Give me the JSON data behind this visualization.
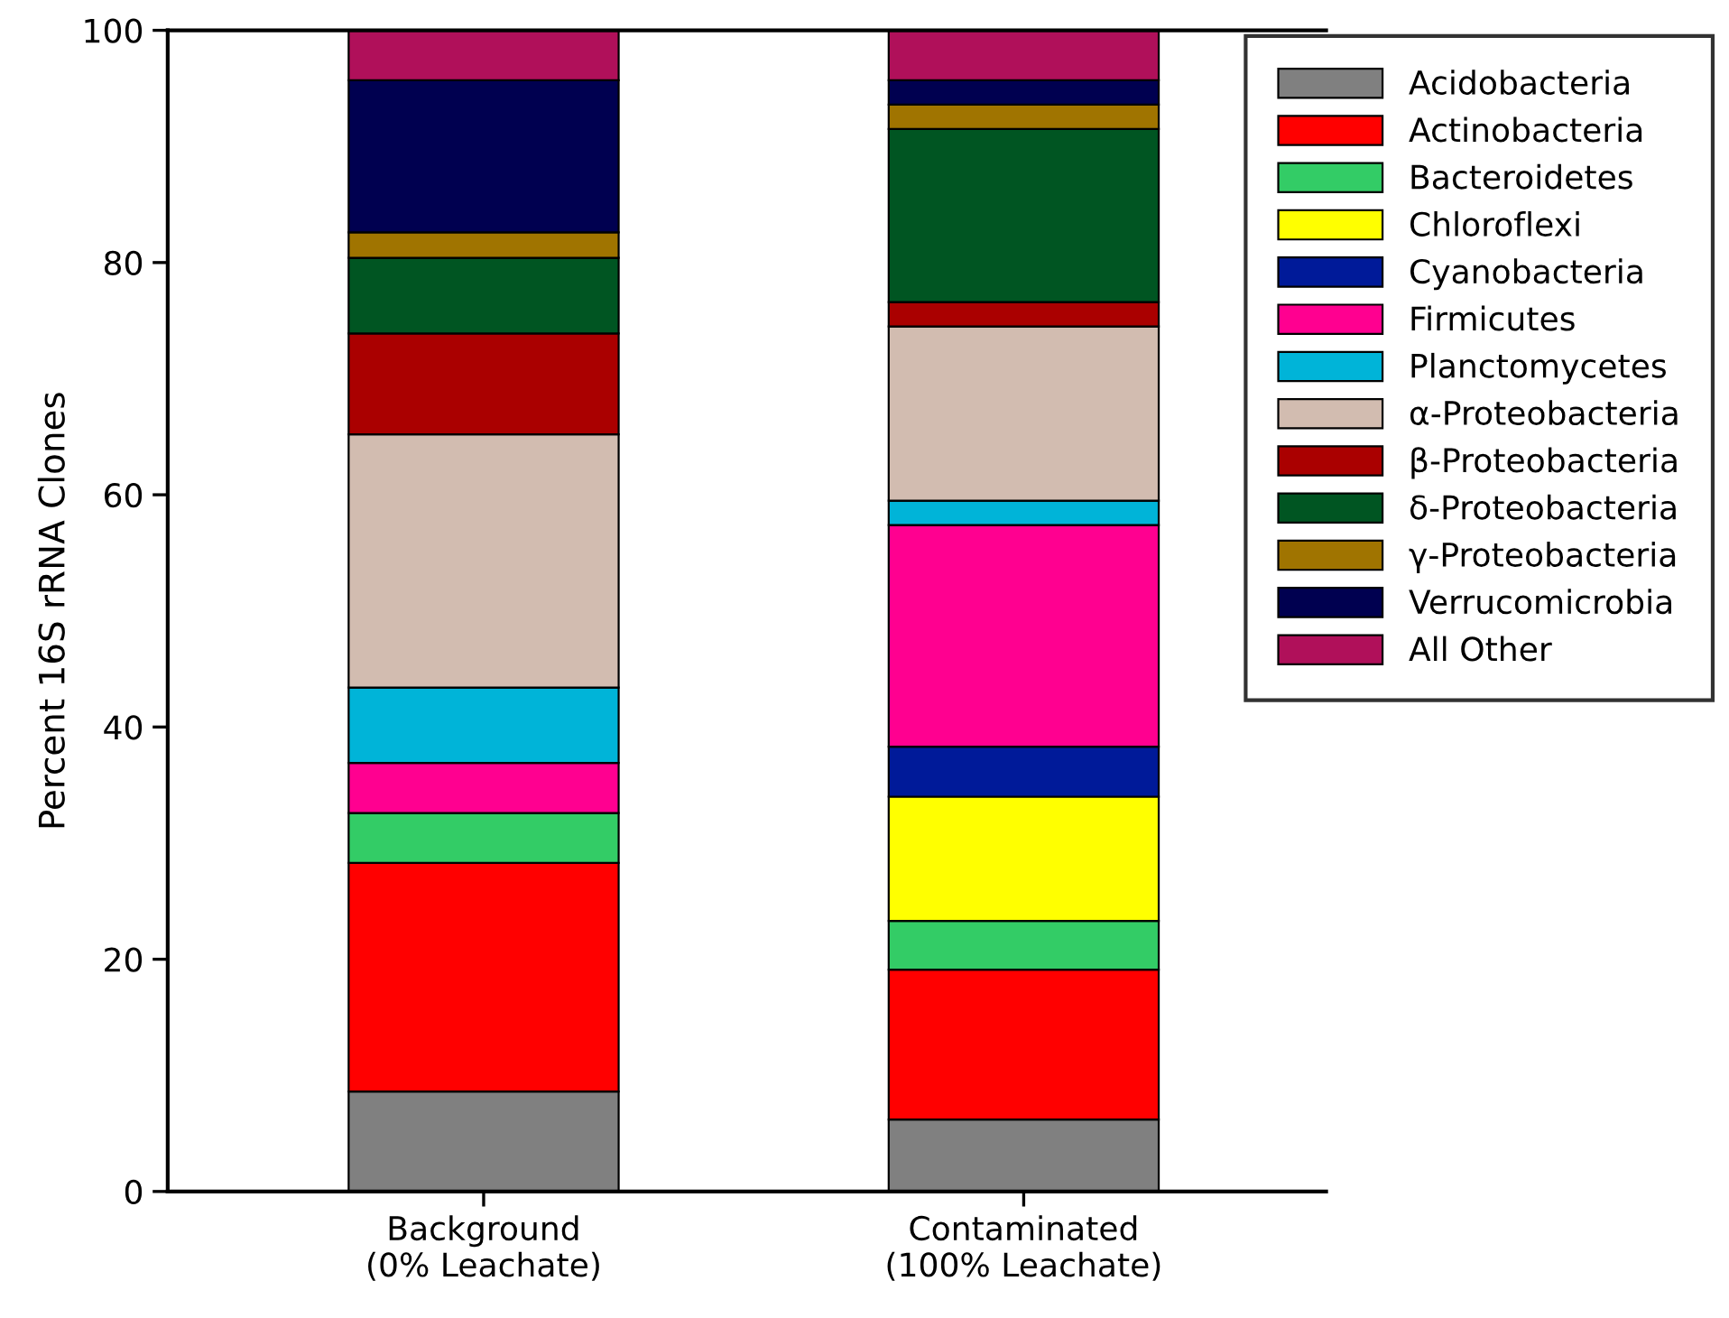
{
  "chart_data": {
    "type": "bar",
    "stacked": true,
    "ylabel": "Percent 16S rRNA Clones",
    "categories": [
      "Background\n(0% Leachate)",
      "Contaminated\n(100% Leachate)"
    ],
    "ylim": [
      0,
      100
    ],
    "yticks": [
      0,
      20,
      40,
      60,
      80,
      100
    ],
    "grid": false,
    "legend": "top right",
    "series": [
      {
        "name": "Acidobacteria",
        "color": "#808080",
        "values": [
          8.6,
          6.2
        ]
      },
      {
        "name": "Actinobacteria",
        "color": "#ff0000",
        "values": [
          19.7,
          12.9
        ]
      },
      {
        "name": "Bacteroidetes",
        "color": "#33cc66",
        "values": [
          4.3,
          4.2
        ]
      },
      {
        "name": "Chloroflexi",
        "color": "#ffff00",
        "values": [
          0,
          10.7
        ]
      },
      {
        "name": "Cyanobacteria",
        "color": "#001a99",
        "values": [
          0,
          4.3
        ]
      },
      {
        "name": "Firmicutes",
        "color": "#ff0090",
        "values": [
          4.3,
          19.1
        ]
      },
      {
        "name": "Planctomycetes",
        "color": "#00b4d8",
        "values": [
          6.5,
          2.1
        ]
      },
      {
        "name": "α-Proteobacteria",
        "color": "#d2bcb0",
        "values": [
          21.8,
          15.0
        ]
      },
      {
        "name": "β-Proteobacteria",
        "color": "#aa0000",
        "values": [
          8.7,
          2.1
        ]
      },
      {
        "name": "δ-Proteobacteria",
        "color": "#005522",
        "values": [
          6.5,
          14.9
        ]
      },
      {
        "name": "γ-Proteobacteria",
        "color": "#a07400",
        "values": [
          2.2,
          2.1
        ]
      },
      {
        "name": "Verrucomicrobia",
        "color": "#000050",
        "values": [
          13.1,
          2.1
        ]
      },
      {
        "name": "All Other",
        "color": "#b0105a",
        "values": [
          4.3,
          4.3
        ]
      }
    ]
  }
}
